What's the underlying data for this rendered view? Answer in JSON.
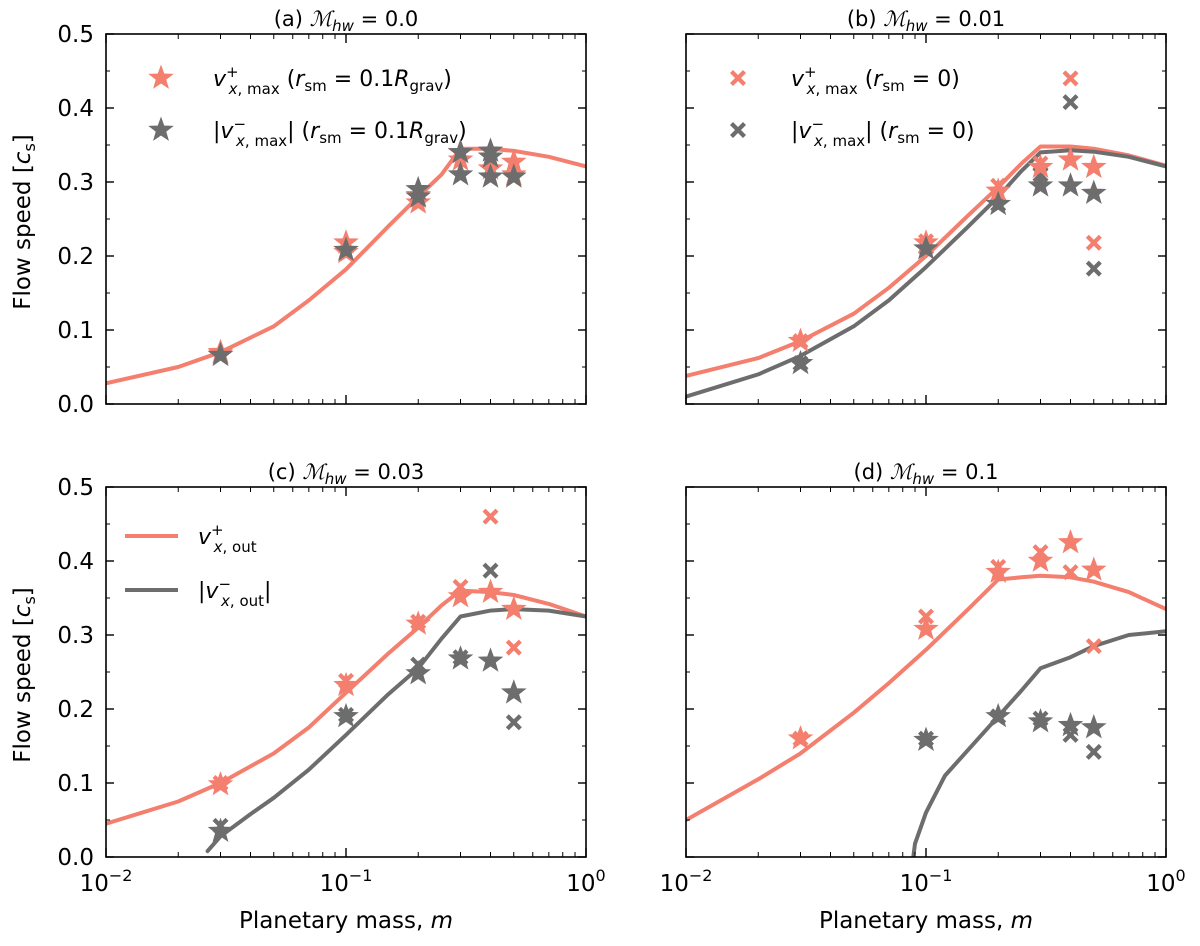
{
  "figure": {
    "xlabel": "Planetary mass, m",
    "ylabel": "Flow speed [c_s]"
  },
  "colors": {
    "salmon": "#f47f6e",
    "gray": "#6d6d6d"
  },
  "chart_data": [
    {
      "panel": "a",
      "type": "scatter",
      "title": "(a) ℳhw = 0.0",
      "x_scale": "log",
      "xlim": [
        0.01,
        1
      ],
      "ylim": [
        0,
        0.5
      ],
      "show_y_tick_labels": true,
      "show_x_tick_labels": false,
      "legend": {
        "position": "top-left",
        "entries": [
          {
            "label": "v⁺ x,max (r_sm = 0.1R_grav)",
            "marker": "star",
            "color": "salmon"
          },
          {
            "label": "|v⁻ x,max| (r_sm = 0.1R_grav)",
            "marker": "star",
            "color": "gray"
          }
        ]
      },
      "lines": [
        {
          "name": "v+ x,out",
          "color": "salmon",
          "x": [
            0.01,
            0.02,
            0.03,
            0.05,
            0.07,
            0.1,
            0.15,
            0.2,
            0.25,
            0.3,
            0.4,
            0.5,
            0.7,
            1.0
          ],
          "y": [
            0.028,
            0.05,
            0.07,
            0.105,
            0.14,
            0.182,
            0.24,
            0.28,
            0.31,
            0.345,
            0.345,
            0.342,
            0.334,
            0.321
          ]
        }
      ],
      "series": [
        {
          "name": "v+ x,max (stars)",
          "marker": "star",
          "color": "salmon",
          "x": [
            0.03,
            0.03,
            0.1,
            0.1,
            0.2,
            0.2,
            0.3,
            0.3,
            0.4,
            0.5,
            0.5
          ],
          "y": [
            0.07,
            0.068,
            0.218,
            0.205,
            0.272,
            0.282,
            0.34,
            0.33,
            0.318,
            0.327,
            0.31
          ]
        },
        {
          "name": "|v- x,max| (stars)",
          "marker": "star",
          "color": "gray",
          "x": [
            0.03,
            0.1,
            0.2,
            0.2,
            0.3,
            0.3,
            0.4,
            0.4,
            0.4,
            0.5
          ],
          "y": [
            0.066,
            0.208,
            0.29,
            0.28,
            0.31,
            0.34,
            0.342,
            0.334,
            0.307,
            0.307
          ]
        }
      ]
    },
    {
      "panel": "b",
      "type": "scatter",
      "title": "(b) ℳhw = 0.01",
      "x_scale": "log",
      "xlim": [
        0.01,
        1
      ],
      "ylim": [
        0,
        0.5
      ],
      "show_y_tick_labels": false,
      "show_x_tick_labels": false,
      "legend": {
        "position": "top-left",
        "entries": [
          {
            "label": "v⁺ x,max (r_sm = 0)",
            "marker": "cross",
            "color": "salmon"
          },
          {
            "label": "|v⁻ x,max| (r_sm = 0)",
            "marker": "cross",
            "color": "gray"
          }
        ]
      },
      "lines": [
        {
          "name": "v+ x,out",
          "color": "salmon",
          "x": [
            0.01,
            0.02,
            0.03,
            0.05,
            0.07,
            0.1,
            0.15,
            0.2,
            0.25,
            0.3,
            0.4,
            0.5,
            0.7,
            1.0
          ],
          "y": [
            0.038,
            0.062,
            0.085,
            0.122,
            0.157,
            0.2,
            0.255,
            0.293,
            0.325,
            0.348,
            0.348,
            0.345,
            0.336,
            0.322
          ]
        },
        {
          "name": "|v- x,out|",
          "color": "gray",
          "x": [
            0.01,
            0.02,
            0.03,
            0.05,
            0.07,
            0.1,
            0.15,
            0.2,
            0.25,
            0.3,
            0.4,
            0.5,
            0.7,
            1.0
          ],
          "y": [
            0.01,
            0.04,
            0.065,
            0.105,
            0.14,
            0.185,
            0.24,
            0.28,
            0.315,
            0.34,
            0.343,
            0.341,
            0.334,
            0.321
          ]
        }
      ],
      "series": [
        {
          "name": "v+ x,max (crosses)",
          "marker": "cross",
          "color": "salmon",
          "x": [
            0.03,
            0.1,
            0.2,
            0.3,
            0.4,
            0.5
          ],
          "y": [
            0.085,
            0.22,
            0.295,
            0.325,
            0.44,
            0.218
          ]
        },
        {
          "name": "|v- x,max| (crosses)",
          "marker": "cross",
          "color": "gray",
          "x": [
            0.03,
            0.1,
            0.2,
            0.3,
            0.4,
            0.5
          ],
          "y": [
            0.055,
            0.212,
            0.27,
            0.31,
            0.408,
            0.183
          ]
        },
        {
          "name": "v+ x,max (stars)",
          "marker": "star",
          "color": "salmon",
          "x": [
            0.03,
            0.1,
            0.2,
            0.3,
            0.4,
            0.5
          ],
          "y": [
            0.085,
            0.218,
            0.288,
            0.32,
            0.33,
            0.32
          ]
        },
        {
          "name": "|v- x,max| (stars)",
          "marker": "star",
          "color": "gray",
          "x": [
            0.03,
            0.1,
            0.2,
            0.3,
            0.4,
            0.5
          ],
          "y": [
            0.055,
            0.21,
            0.27,
            0.295,
            0.295,
            0.285
          ]
        }
      ]
    },
    {
      "panel": "c",
      "type": "scatter",
      "title": "(c) ℳhw = 0.03",
      "x_scale": "log",
      "xlim": [
        0.01,
        1
      ],
      "ylim": [
        0,
        0.5
      ],
      "show_y_tick_labels": true,
      "show_x_tick_labels": true,
      "legend": {
        "position": "top-left",
        "entries": [
          {
            "label": "v⁺ x,out",
            "marker": "line",
            "color": "salmon"
          },
          {
            "label": "|v⁻ x,out|",
            "marker": "line",
            "color": "gray"
          }
        ]
      },
      "lines": [
        {
          "name": "v+ x,out",
          "color": "salmon",
          "x": [
            0.01,
            0.02,
            0.03,
            0.05,
            0.07,
            0.1,
            0.15,
            0.2,
            0.25,
            0.3,
            0.4,
            0.5,
            0.7,
            1.0
          ],
          "y": [
            0.045,
            0.075,
            0.1,
            0.14,
            0.175,
            0.222,
            0.275,
            0.31,
            0.34,
            0.36,
            0.358,
            0.354,
            0.342,
            0.325
          ]
        },
        {
          "name": "|v- x,out|",
          "color": "gray",
          "x": [
            0.0265,
            0.03,
            0.04,
            0.05,
            0.07,
            0.1,
            0.15,
            0.2,
            0.25,
            0.3,
            0.4,
            0.5,
            0.7,
            1.0
          ],
          "y": [
            0.008,
            0.028,
            0.058,
            0.08,
            0.118,
            0.165,
            0.22,
            0.255,
            0.295,
            0.325,
            0.333,
            0.335,
            0.333,
            0.325
          ]
        }
      ],
      "series": [
        {
          "name": "v+ x,max (crosses)",
          "marker": "cross",
          "color": "salmon",
          "x": [
            0.03,
            0.1,
            0.2,
            0.3,
            0.4,
            0.5
          ],
          "y": [
            0.1,
            0.238,
            0.318,
            0.365,
            0.46,
            0.283
          ]
        },
        {
          "name": "|v- x,max| (crosses)",
          "marker": "cross",
          "color": "gray",
          "x": [
            0.03,
            0.1,
            0.2,
            0.3,
            0.4,
            0.5
          ],
          "y": [
            0.042,
            0.192,
            0.26,
            0.27,
            0.387,
            0.182
          ]
        },
        {
          "name": "v+ x,max (stars)",
          "marker": "star",
          "color": "salmon",
          "x": [
            0.03,
            0.1,
            0.2,
            0.3,
            0.4,
            0.5
          ],
          "y": [
            0.098,
            0.232,
            0.315,
            0.352,
            0.358,
            0.335
          ]
        },
        {
          "name": "|v- x,max| (stars)",
          "marker": "star",
          "color": "gray",
          "x": [
            0.03,
            0.1,
            0.2,
            0.3,
            0.4,
            0.5
          ],
          "y": [
            0.035,
            0.19,
            0.248,
            0.268,
            0.265,
            0.222
          ]
        }
      ]
    },
    {
      "panel": "d",
      "type": "scatter",
      "title": "(d) ℳhw = 0.1",
      "x_scale": "log",
      "xlim": [
        0.01,
        1
      ],
      "ylim": [
        0,
        0.5
      ],
      "show_y_tick_labels": false,
      "show_x_tick_labels": true,
      "legend": null,
      "lines": [
        {
          "name": "v+ x,out",
          "color": "salmon",
          "x": [
            0.01,
            0.02,
            0.03,
            0.05,
            0.07,
            0.1,
            0.15,
            0.2,
            0.25,
            0.3,
            0.4,
            0.5,
            0.7,
            1.0
          ],
          "y": [
            0.05,
            0.105,
            0.14,
            0.195,
            0.235,
            0.28,
            0.335,
            0.375,
            0.378,
            0.38,
            0.378,
            0.372,
            0.358,
            0.335
          ]
        },
        {
          "name": "|v- x,out|",
          "color": "gray",
          "x": [
            0.0885,
            0.09,
            0.1,
            0.12,
            0.15,
            0.2,
            0.25,
            0.3,
            0.4,
            0.5,
            0.7,
            1.0
          ],
          "y": [
            0.0,
            0.018,
            0.06,
            0.11,
            0.145,
            0.19,
            0.225,
            0.255,
            0.27,
            0.285,
            0.3,
            0.305
          ]
        }
      ],
      "series": [
        {
          "name": "v+ x,max (crosses)",
          "marker": "cross",
          "color": "salmon",
          "x": [
            0.03,
            0.1,
            0.2,
            0.3,
            0.4,
            0.5
          ],
          "y": [
            0.16,
            0.325,
            0.392,
            0.412,
            0.385,
            0.285
          ]
        },
        {
          "name": "|v- x,max| (crosses)",
          "marker": "cross",
          "color": "gray",
          "x": [
            0.1,
            0.2,
            0.3,
            0.4,
            0.5
          ],
          "y": [
            0.16,
            0.19,
            0.187,
            0.165,
            0.142
          ]
        },
        {
          "name": "v+ x,max (stars)",
          "marker": "star",
          "color": "salmon",
          "x": [
            0.03,
            0.1,
            0.2,
            0.3,
            0.4,
            0.5
          ],
          "y": [
            0.16,
            0.308,
            0.385,
            0.4,
            0.425,
            0.388
          ]
        },
        {
          "name": "|v- x,max| (stars)",
          "marker": "star",
          "color": "gray",
          "x": [
            0.1,
            0.2,
            0.3,
            0.4,
            0.5
          ],
          "y": [
            0.158,
            0.19,
            0.183,
            0.178,
            0.175
          ]
        }
      ]
    }
  ]
}
